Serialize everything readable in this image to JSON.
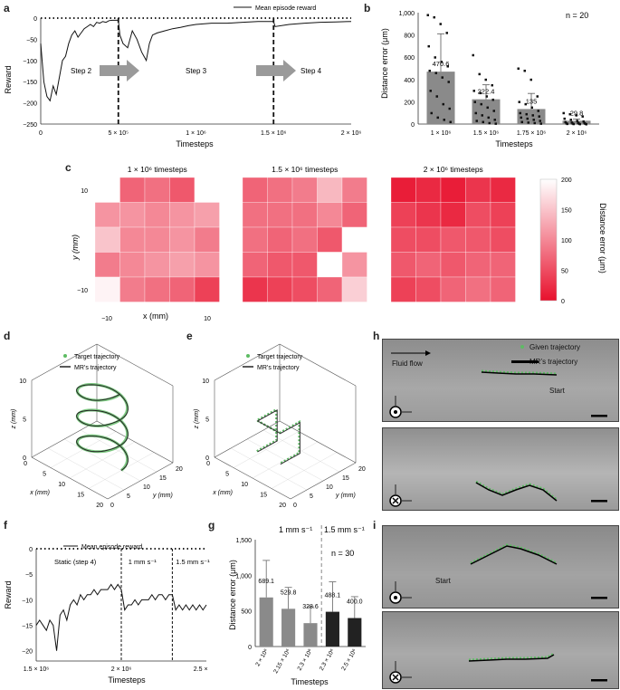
{
  "panels": {
    "a": "a",
    "b": "b",
    "c": "c",
    "d": "d",
    "e": "e",
    "f": "f",
    "g": "g",
    "h": "h",
    "i": "i"
  },
  "chart_data": [
    {
      "id": "a",
      "type": "line",
      "xlabel": "Timesteps",
      "ylabel": "Reward",
      "ylim": [
        -250,
        0
      ],
      "xlim": [
        0,
        2000000
      ],
      "yticks": [
        "0",
        "−50",
        "−100",
        "−150",
        "−200",
        "−250"
      ],
      "xticks": [
        "0",
        "5 × 10⁵",
        "1 × 10⁶",
        "1.5 × 10⁶",
        "2 × 10⁶"
      ],
      "legend": "Mean episode reward",
      "steps": [
        "Step 2",
        "Step 3",
        "Step 4"
      ],
      "series": [
        {
          "name": "Mean episode reward",
          "x": [
            0,
            20000,
            40000,
            60000,
            80000,
            100000,
            120000,
            140000,
            160000,
            180000,
            200000,
            220000,
            240000,
            260000,
            280000,
            300000,
            320000,
            340000,
            360000,
            380000,
            400000,
            420000,
            440000,
            460000,
            480000,
            500000,
            510000,
            530000,
            560000,
            590000,
            620000,
            650000,
            680000,
            700000,
            720000,
            750000,
            800000,
            850000,
            900000,
            950000,
            1000000,
            1100000,
            1200000,
            1300000,
            1400000,
            1500000,
            1510000,
            1600000,
            1700000,
            1800000,
            1900000,
            2000000
          ],
          "values": [
            -60,
            -150,
            -185,
            -195,
            -160,
            -180,
            -140,
            -100,
            -90,
            -60,
            -40,
            -30,
            -45,
            -35,
            -25,
            -20,
            -15,
            -20,
            -10,
            -12,
            -8,
            -10,
            -6,
            -5,
            -5,
            -5,
            -40,
            -60,
            -70,
            -30,
            -50,
            -80,
            -100,
            -60,
            -40,
            -35,
            -30,
            -25,
            -22,
            -18,
            -15,
            -12,
            -12,
            -10,
            -8,
            -8,
            -20,
            -15,
            -12,
            -10,
            -9,
            -8
          ]
        }
      ]
    },
    {
      "id": "b",
      "type": "bar",
      "xlabel": "Timesteps",
      "ylabel": "Distance error (μm)",
      "ylim": [
        0,
        1000
      ],
      "yticks": [
        "0",
        "200",
        "400",
        "600",
        "800",
        "1,000"
      ],
      "categories": [
        "1 × 10⁶",
        "1.5 × 10⁶",
        "1.75 × 10⁶",
        "2 × 10⁶"
      ],
      "values": [
        470.6,
        222.4,
        135,
        29.8
      ],
      "value_labels": [
        "470.6",
        "222.4",
        "135",
        "29.8"
      ],
      "errors": [
        340,
        130,
        140,
        15
      ],
      "annotation": "n = 20",
      "points": [
        [
          980,
          960,
          900,
          820,
          700,
          600,
          560,
          520,
          480,
          460,
          420,
          380,
          300,
          250,
          180,
          140,
          100,
          60,
          40,
          20
        ],
        [
          620,
          450,
          400,
          350,
          300,
          280,
          250,
          220,
          200,
          180,
          150,
          120,
          100,
          80,
          60,
          40,
          30,
          20,
          10,
          5
        ],
        [
          500,
          480,
          400,
          250,
          200,
          180,
          150,
          120,
          100,
          90,
          80,
          70,
          60,
          50,
          40,
          30,
          20,
          15,
          10,
          5
        ],
        [
          100,
          90,
          80,
          70,
          50,
          40,
          30,
          25,
          20,
          15,
          12,
          10,
          8,
          6,
          5,
          4,
          3,
          2,
          1,
          0
        ]
      ]
    },
    {
      "id": "c",
      "type": "heatmap",
      "xlabel": "x (mm)",
      "ylabel": "y (mm)",
      "ticks": [
        "10",
        "−10"
      ],
      "xticks": [
        "−10",
        "10"
      ],
      "titles": [
        "1 × 10⁶ timesteps",
        "1.5 × 10⁶ timesteps",
        "2 × 10⁶ timesteps"
      ],
      "colorbar_label": "Distance error (μm)",
      "colorbar_ticks": [
        "200",
        "150",
        "100",
        "50",
        "0"
      ],
      "zlim": [
        0,
        200
      ],
      "grids": [
        [
          [
            200,
            70,
            80,
            60,
            200
          ],
          [
            110,
            110,
            100,
            110,
            120
          ],
          [
            150,
            100,
            100,
            110,
            90
          ],
          [
            90,
            100,
            110,
            120,
            110
          ],
          [
            190,
            90,
            80,
            70,
            40
          ]
        ],
        [
          [
            70,
            80,
            90,
            140,
            90
          ],
          [
            80,
            80,
            80,
            100,
            70
          ],
          [
            80,
            70,
            80,
            60,
            200
          ],
          [
            70,
            60,
            60,
            200,
            110
          ],
          [
            30,
            40,
            50,
            70,
            160
          ]
        ],
        [
          [
            10,
            20,
            10,
            30,
            20
          ],
          [
            40,
            30,
            20,
            50,
            40
          ],
          [
            50,
            50,
            60,
            60,
            50
          ],
          [
            60,
            70,
            60,
            70,
            70
          ],
          [
            40,
            50,
            70,
            80,
            70
          ]
        ]
      ]
    },
    {
      "id": "d",
      "type": "line3d",
      "xlabel": "x (mm)",
      "ylabel": "y (mm)",
      "zlabel": "z (mm)",
      "legend": [
        "Target trajectory",
        "MR’s trajectory"
      ],
      "xticks": [
        "0",
        "5",
        "10",
        "15",
        "20"
      ],
      "yticks": [
        "0",
        "5",
        "10",
        "15",
        "20"
      ],
      "zticks": [
        "0",
        "5",
        "10"
      ]
    },
    {
      "id": "e",
      "type": "line3d",
      "xlabel": "x (mm)",
      "ylabel": "y (mm)",
      "zlabel": "z (mm)",
      "legend": [
        "Target trajectory",
        "MR’s trajectory"
      ],
      "xticks": [
        "0",
        "5",
        "10",
        "15",
        "20"
      ],
      "yticks": [
        "0",
        "5",
        "10",
        "15",
        "20"
      ],
      "zticks": [
        "0",
        "5",
        "10"
      ]
    },
    {
      "id": "f",
      "type": "line",
      "xlabel": "Timesteps",
      "ylabel": "Reward",
      "ylim": [
        -22,
        0
      ],
      "xlim": [
        1500000,
        2500000
      ],
      "yticks": [
        "0",
        "−5",
        "−10",
        "−15",
        "−20"
      ],
      "xticks": [
        "1.5 × 10⁶",
        "2 × 10⁶",
        "2.5 × 10⁶"
      ],
      "legend": "Mean episode reward",
      "regions": [
        "Static (step 4)",
        "1 mm s⁻¹",
        "1.5 mm s⁻¹"
      ],
      "series": [
        {
          "name": "Mean episode reward",
          "x": [
            1500000,
            1520000,
            1540000,
            1560000,
            1580000,
            1600000,
            1620000,
            1640000,
            1660000,
            1680000,
            1700000,
            1720000,
            1740000,
            1760000,
            1780000,
            1800000,
            1820000,
            1840000,
            1860000,
            1880000,
            1900000,
            1920000,
            1940000,
            1960000,
            1980000,
            2000000,
            2020000,
            2040000,
            2060000,
            2080000,
            2100000,
            2120000,
            2140000,
            2160000,
            2180000,
            2200000,
            2220000,
            2240000,
            2260000,
            2280000,
            2300000,
            2320000,
            2340000,
            2360000,
            2380000,
            2400000,
            2420000,
            2440000,
            2460000,
            2480000,
            2500000
          ],
          "values": [
            -15,
            -14,
            -15,
            -16,
            -14,
            -15,
            -20,
            -13,
            -12,
            -14,
            -11,
            -10,
            -11,
            -9,
            -10,
            -9,
            -9,
            -8,
            -9,
            -8,
            -8,
            -8,
            -7,
            -8,
            -7,
            -8,
            -12,
            -11,
            -11,
            -10,
            -11,
            -10,
            -10,
            -10,
            -9,
            -10,
            -9,
            -9,
            -10,
            -9,
            -9,
            -12,
            -11,
            -12,
            -11,
            -12,
            -11,
            -12,
            -11,
            -12,
            -11
          ]
        }
      ]
    },
    {
      "id": "g",
      "type": "bar",
      "xlabel": "Timesteps",
      "ylabel": "Distance error (μm)",
      "ylim": [
        0,
        1500
      ],
      "yticks": [
        "0",
        "500",
        "1,000",
        "1,500"
      ],
      "categories": [
        "2 × 10⁶",
        "2.15 × 10⁶",
        "2.3 × 10⁶",
        "2.3 × 10⁶",
        "2.5 × 10⁶"
      ],
      "values": [
        689.1,
        529.8,
        328.6,
        488.1,
        400.0
      ],
      "value_labels": [
        "689.1",
        "529.8",
        "328.6",
        "488.1",
        "400.0"
      ],
      "errors": [
        520,
        300,
        230,
        420,
        300
      ],
      "groups": [
        "1 mm s⁻¹",
        "1.5 mm s⁻¹"
      ],
      "annotation": "n = 30"
    }
  ],
  "photos": {
    "h_top": {
      "fluid": "Fluid flow",
      "given": "Given trajectory",
      "mr": "MR’s trajectory",
      "start": "Start"
    },
    "i_top": {
      "start": "Start"
    }
  },
  "colors": {
    "heat_low": "#e8112d",
    "heat_high": "#ffffff",
    "bar_grey": "#8a8a8a",
    "bar_black": "#222222",
    "target_green": "#5dbb63",
    "trajectory_black": "#000000"
  }
}
